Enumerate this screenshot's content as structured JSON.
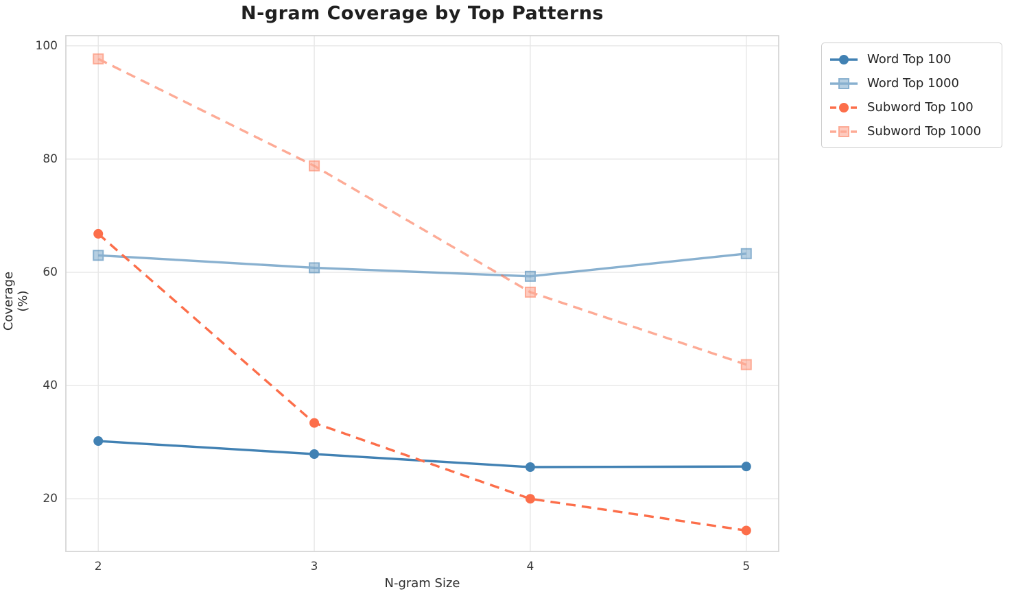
{
  "figure": {
    "title": "N-gram Coverage by Top Patterns",
    "xlabel": "N-gram Size",
    "ylabel": "Coverage (%)"
  },
  "chart_data": {
    "type": "line",
    "title": "N-gram Coverage by Top Patterns",
    "xlabel": "N-gram Size",
    "ylabel": "Coverage (%)",
    "x": [
      2,
      3,
      4,
      5
    ],
    "xtick_labels": [
      "2",
      "3",
      "4",
      "5"
    ],
    "ytick_values": [
      20,
      40,
      60,
      80,
      100
    ],
    "ytick_labels": [
      "20",
      "40",
      "60",
      "80",
      "100"
    ],
    "xlim": [
      1.85,
      5.15
    ],
    "ylim": [
      10.7,
      101.8
    ],
    "grid": true,
    "legend_position": "outside-top-right",
    "colors": {
      "word": "#4181B3",
      "subword": "#FC6E4A",
      "grid": "#e7e7e7",
      "spine": "#d6d6d6"
    },
    "series": [
      {
        "name": "Word Top 100",
        "values": [
          30.2,
          27.9,
          25.6,
          25.7
        ],
        "color": "#4181B3",
        "line": "solid",
        "marker": "circle",
        "opacity": 1
      },
      {
        "name": "Word Top 1000",
        "values": [
          63.0,
          60.8,
          59.3,
          63.3
        ],
        "color": "#4181B3",
        "line": "solid",
        "marker": "square",
        "opacity": 0.62
      },
      {
        "name": "Subword Top 100",
        "values": [
          66.8,
          33.4,
          20.0,
          14.4
        ],
        "color": "#FC6E4A",
        "line": "dashed",
        "marker": "circle",
        "opacity": 1
      },
      {
        "name": "Subword Top 1000",
        "values": [
          97.7,
          78.8,
          56.5,
          43.7
        ],
        "color": "#FC6E4A",
        "line": "dashed",
        "marker": "square",
        "opacity": 0.58
      }
    ]
  }
}
